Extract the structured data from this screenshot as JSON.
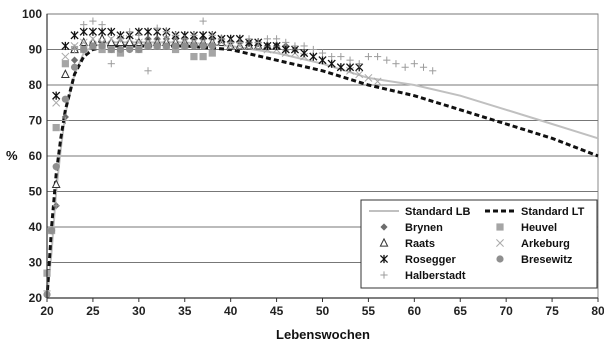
{
  "chart_data": {
    "type": "scatter",
    "xlabel": "Lebenswochen",
    "ylabel": "%",
    "xlim": [
      20,
      80
    ],
    "ylim": [
      20,
      100
    ],
    "xticks": [
      20,
      25,
      30,
      35,
      40,
      45,
      50,
      55,
      60,
      65,
      70,
      75,
      80
    ],
    "yticks": [
      20,
      30,
      40,
      50,
      60,
      70,
      80,
      90,
      100
    ],
    "grid": "horizontal",
    "legend_position": "bottom-right",
    "series": [
      {
        "name": "Standard LB",
        "kind": "line",
        "style": "solid",
        "color": "#c0c0c0",
        "x": [
          20,
          20.5,
          21,
          21.5,
          22,
          23,
          24,
          25,
          27,
          30,
          35,
          40,
          45,
          50,
          55,
          60,
          65,
          70,
          75,
          80
        ],
        "y": [
          20,
          33,
          50,
          62,
          72,
          83,
          89,
          91,
          92,
          92,
          92,
          91,
          89,
          86,
          82,
          80,
          77,
          73,
          69,
          65
        ]
      },
      {
        "name": "Standard LT",
        "kind": "line",
        "style": "dashed",
        "color": "#111111",
        "x": [
          20,
          20.5,
          21,
          21.5,
          22,
          23,
          24,
          25,
          27,
          30,
          35,
          40,
          45,
          50,
          55,
          60,
          65,
          70,
          75,
          80
        ],
        "y": [
          20,
          40,
          55,
          65,
          73,
          83,
          88,
          90,
          91,
          91,
          91,
          90,
          87,
          84,
          80,
          77,
          73,
          69,
          65,
          60
        ]
      },
      {
        "name": "Brynen",
        "kind": "points",
        "marker": "diamond",
        "color": "#6d6d6d",
        "x": [
          21,
          22,
          23,
          24,
          25,
          26,
          27,
          28,
          29,
          30,
          31,
          32,
          33,
          34,
          35,
          36,
          37,
          38,
          39,
          40,
          41,
          42,
          43,
          44,
          45,
          46,
          47
        ],
        "y": [
          46,
          71,
          87,
          90,
          91,
          92,
          92,
          92,
          92,
          92,
          93,
          93,
          93,
          93,
          93,
          93,
          93,
          93,
          93,
          92,
          92,
          92,
          92,
          91,
          91,
          91,
          90
        ]
      },
      {
        "name": "Heuvel",
        "kind": "points",
        "marker": "square",
        "color": "#a5a5a5",
        "x": [
          20,
          20.5,
          21,
          22,
          23,
          24,
          25,
          26,
          27,
          28,
          29,
          30,
          31,
          32,
          33,
          34,
          35,
          36,
          37,
          38
        ],
        "y": [
          27,
          39,
          68,
          86,
          90,
          90,
          91,
          90,
          90,
          89,
          91,
          90,
          91,
          91,
          91,
          90,
          91,
          88,
          88,
          89
        ]
      },
      {
        "name": "Raats",
        "kind": "points",
        "marker": "triangle",
        "color": "#333333",
        "x": [
          21,
          22,
          23,
          24,
          25,
          26,
          27,
          28,
          29,
          30,
          31,
          32,
          33,
          34,
          35,
          36,
          37,
          38,
          39,
          40,
          41,
          42,
          43,
          44,
          45
        ],
        "y": [
          52,
          83,
          90,
          92,
          92,
          93,
          92,
          92,
          92,
          92,
          92,
          92,
          92,
          92,
          92,
          92,
          92,
          92,
          92,
          91,
          91,
          91,
          91,
          91,
          91
        ]
      },
      {
        "name": "Arkeburg",
        "kind": "points",
        "marker": "x",
        "color": "#aaaaaa",
        "x": [
          21,
          22,
          23,
          24,
          25,
          26,
          27,
          28,
          29,
          30,
          31,
          32,
          33,
          34,
          35,
          36,
          37,
          38,
          39,
          40,
          41,
          42,
          43,
          44,
          45,
          46,
          47,
          48,
          49,
          50,
          51,
          52,
          53,
          54,
          55,
          56
        ],
        "y": [
          75,
          88,
          91,
          92,
          93,
          92,
          93,
          93,
          93,
          92,
          92,
          92,
          93,
          93,
          92,
          92,
          92,
          92,
          92,
          91,
          91,
          91,
          91,
          90,
          90,
          89,
          89,
          88,
          88,
          87,
          86,
          85,
          84,
          83,
          82,
          81
        ]
      },
      {
        "name": "Rosegger",
        "kind": "points",
        "marker": "star",
        "color": "#111111",
        "x": [
          21,
          22,
          23,
          24,
          25,
          26,
          27,
          28,
          29,
          30,
          31,
          32,
          33,
          34,
          35,
          36,
          37,
          38,
          39,
          40,
          41,
          42,
          43,
          44,
          45,
          46,
          47,
          48,
          49,
          50,
          51,
          52,
          53,
          54
        ],
        "y": [
          77,
          91,
          94,
          95,
          95,
          95,
          95,
          94,
          94,
          95,
          95,
          95,
          95,
          94,
          94,
          94,
          94,
          94,
          93,
          93,
          93,
          92,
          92,
          91,
          91,
          90,
          90,
          89,
          88,
          87,
          86,
          85,
          85,
          85
        ]
      },
      {
        "name": "Bresewitz",
        "kind": "points",
        "marker": "circle",
        "color": "#8f8f8f",
        "x": [
          20,
          20.5,
          21,
          22,
          23,
          24,
          25,
          26,
          27,
          28,
          29,
          30,
          31,
          32,
          33,
          34,
          35,
          36,
          37,
          38
        ],
        "y": [
          21,
          39,
          57,
          76,
          85,
          90,
          91,
          91,
          90,
          90,
          90,
          90,
          91,
          91,
          91,
          91,
          91,
          91,
          91,
          91
        ]
      },
      {
        "name": "Halberstadt",
        "kind": "points",
        "marker": "plus",
        "color": "#9c9c9c",
        "x": [
          20,
          21,
          22,
          23,
          24,
          25,
          26,
          27,
          28,
          29,
          30,
          31,
          32,
          33,
          34,
          35,
          36,
          37,
          38,
          39,
          40,
          41,
          42,
          43,
          44,
          45,
          46,
          47,
          48,
          49,
          50,
          51,
          52,
          53,
          54,
          55,
          56,
          57,
          58,
          59,
          60,
          61,
          62
        ],
        "y": [
          22,
          46,
          70,
          90,
          97,
          98,
          97,
          86,
          93,
          95,
          94,
          84,
          96,
          95,
          94,
          93,
          94,
          98,
          94,
          93,
          92,
          92,
          93,
          92,
          93,
          93,
          92,
          91,
          91,
          90,
          89,
          88,
          88,
          87,
          86,
          88,
          88,
          87,
          86,
          85,
          86,
          85,
          84
        ]
      }
    ]
  }
}
